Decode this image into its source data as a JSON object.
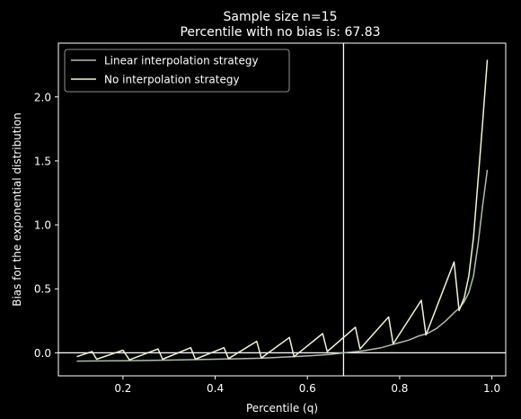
{
  "chart_data": {
    "type": "line",
    "title_lines": [
      "Sample size n=15",
      "Percentile with no bias is: 67.83"
    ],
    "xlabel": "Percentile (q)",
    "ylabel": "Bias for the exponential distribution",
    "xlim": [
      0.06,
      1.03
    ],
    "ylim": [
      -0.18,
      2.42
    ],
    "xticks": [
      0.2,
      0.4,
      0.6,
      0.8,
      1.0
    ],
    "xtick_labels": [
      "0.2",
      "0.4",
      "0.6",
      "0.8",
      "1.0"
    ],
    "yticks": [
      0.0,
      0.5,
      1.0,
      1.5,
      2.0
    ],
    "ytick_labels": [
      "0.0",
      "0.5",
      "1.0",
      "1.5",
      "2.0"
    ],
    "legend_position": "top-left",
    "reference_lines": {
      "vertical_x": 0.6783,
      "horizontal_y": 0.0
    },
    "series": [
      {
        "name": "Linear interpolation strategy",
        "color": "#aebcae",
        "points": [
          [
            0.1,
            -0.065
          ],
          [
            0.2,
            -0.062
          ],
          [
            0.3,
            -0.057
          ],
          [
            0.4,
            -0.05
          ],
          [
            0.5,
            -0.042
          ],
          [
            0.6,
            -0.025
          ],
          [
            0.65,
            -0.012
          ],
          [
            0.68,
            0.0
          ],
          [
            0.72,
            0.015
          ],
          [
            0.76,
            0.04
          ],
          [
            0.78,
            0.06
          ],
          [
            0.8,
            0.08
          ],
          [
            0.82,
            0.1
          ],
          [
            0.84,
            0.13
          ],
          [
            0.86,
            0.15
          ],
          [
            0.88,
            0.19
          ],
          [
            0.9,
            0.25
          ],
          [
            0.92,
            0.32
          ],
          [
            0.93,
            0.35
          ],
          [
            0.94,
            0.4
          ],
          [
            0.95,
            0.47
          ],
          [
            0.96,
            0.6
          ],
          [
            0.97,
            0.85
          ],
          [
            0.98,
            1.15
          ],
          [
            0.99,
            1.43
          ]
        ]
      },
      {
        "name": "No interpolation strategy",
        "color": "#f0f5d2",
        "points": [
          [
            0.1,
            -0.03
          ],
          [
            0.133,
            0.01
          ],
          [
            0.143,
            -0.05
          ],
          [
            0.2,
            0.02
          ],
          [
            0.214,
            -0.055
          ],
          [
            0.276,
            0.03
          ],
          [
            0.286,
            -0.05
          ],
          [
            0.347,
            0.04
          ],
          [
            0.357,
            -0.05
          ],
          [
            0.419,
            0.04
          ],
          [
            0.429,
            -0.045
          ],
          [
            0.49,
            0.09
          ],
          [
            0.5,
            -0.04
          ],
          [
            0.561,
            0.12
          ],
          [
            0.571,
            -0.03
          ],
          [
            0.633,
            0.15
          ],
          [
            0.643,
            0.01
          ],
          [
            0.704,
            0.2
          ],
          [
            0.714,
            0.03
          ],
          [
            0.776,
            0.28
          ],
          [
            0.786,
            0.07
          ],
          [
            0.847,
            0.41
          ],
          [
            0.857,
            0.14
          ],
          [
            0.918,
            0.71
          ],
          [
            0.929,
            0.33
          ],
          [
            0.94,
            0.43
          ],
          [
            0.95,
            0.6
          ],
          [
            0.96,
            0.9
          ],
          [
            0.97,
            1.35
          ],
          [
            0.98,
            1.8
          ],
          [
            0.99,
            2.29
          ]
        ]
      }
    ]
  }
}
